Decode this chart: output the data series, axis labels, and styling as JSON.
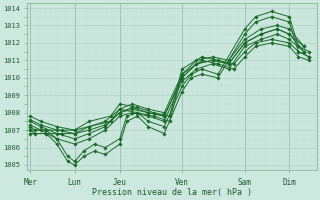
{
  "xlabel": "Pression niveau de la mer( hPa )",
  "background_color": "#cce8df",
  "grid_color_major": "#a8cfc4",
  "grid_color_minor": "#b8d9d0",
  "line_color": "#1a6b2a",
  "ylim": [
    1004.7,
    1014.3
  ],
  "xlim": [
    -0.05,
    5.35
  ],
  "yticks": [
    1005,
    1006,
    1007,
    1008,
    1009,
    1010,
    1011,
    1012,
    1013,
    1014
  ],
  "day_labels": [
    "Mer",
    "Lun",
    "Jeu",
    "Ven",
    "Sam",
    "Dim"
  ],
  "day_positions": [
    0.0,
    0.83,
    1.67,
    2.83,
    4.0,
    4.83
  ],
  "lines": [
    {
      "x": [
        0.0,
        0.1,
        0.3,
        0.5,
        0.7,
        0.83,
        1.0,
        1.2,
        1.4,
        1.67,
        1.8,
        2.0,
        2.2,
        2.5,
        2.83,
        3.0,
        3.2,
        3.5,
        4.0,
        4.2,
        4.5,
        4.83,
        5.0,
        5.2
      ],
      "y": [
        1007.2,
        1007.0,
        1007.0,
        1006.5,
        1005.5,
        1005.2,
        1005.8,
        1006.2,
        1006.0,
        1006.5,
        1007.8,
        1008.0,
        1007.5,
        1007.2,
        1009.5,
        1010.2,
        1010.5,
        1010.2,
        1012.8,
        1013.5,
        1013.8,
        1013.5,
        1011.8,
        1011.5
      ]
    },
    {
      "x": [
        0.0,
        0.1,
        0.3,
        0.5,
        0.7,
        0.83,
        1.0,
        1.2,
        1.4,
        1.67,
        1.8,
        2.0,
        2.2,
        2.5,
        2.83,
        3.0,
        3.2,
        3.5,
        4.0,
        4.2,
        4.5,
        4.83,
        5.0,
        5.2
      ],
      "y": [
        1007.0,
        1006.8,
        1006.8,
        1006.2,
        1005.2,
        1005.0,
        1005.5,
        1005.8,
        1005.6,
        1006.2,
        1007.5,
        1007.8,
        1007.2,
        1006.8,
        1009.2,
        1010.0,
        1010.2,
        1010.0,
        1012.5,
        1013.2,
        1013.5,
        1013.2,
        1011.5,
        1011.2
      ]
    },
    {
      "x": [
        0.0,
        0.2,
        0.5,
        0.83,
        1.1,
        1.4,
        1.67,
        1.9,
        2.2,
        2.5,
        2.83,
        3.1,
        3.4,
        3.7,
        4.0,
        4.3,
        4.6,
        4.83,
        5.1
      ],
      "y": [
        1007.5,
        1007.2,
        1006.8,
        1006.5,
        1006.8,
        1007.2,
        1008.0,
        1008.2,
        1008.0,
        1007.8,
        1010.0,
        1010.8,
        1011.0,
        1010.8,
        1012.0,
        1012.5,
        1012.8,
        1012.5,
        1011.8
      ]
    },
    {
      "x": [
        0.0,
        0.2,
        0.5,
        0.83,
        1.1,
        1.4,
        1.67,
        1.9,
        2.2,
        2.5,
        2.83,
        3.1,
        3.4,
        3.7,
        4.0,
        4.3,
        4.6,
        4.83,
        5.1
      ],
      "y": [
        1007.3,
        1007.0,
        1006.5,
        1006.2,
        1006.5,
        1007.0,
        1007.8,
        1008.0,
        1007.8,
        1007.5,
        1009.8,
        1010.5,
        1010.8,
        1010.5,
        1011.8,
        1012.2,
        1012.5,
        1012.2,
        1011.5
      ]
    },
    {
      "x": [
        0.0,
        0.2,
        0.5,
        0.83,
        1.1,
        1.4,
        1.67,
        1.9,
        2.2,
        2.5,
        2.83,
        3.1,
        3.4,
        3.7,
        4.0,
        4.3,
        4.6,
        4.83,
        5.1
      ],
      "y": [
        1007.8,
        1007.5,
        1007.2,
        1007.0,
        1007.2,
        1007.5,
        1008.2,
        1008.5,
        1008.2,
        1008.0,
        1010.2,
        1011.0,
        1011.2,
        1011.0,
        1012.2,
        1012.8,
        1013.0,
        1012.8,
        1011.8
      ]
    },
    {
      "x": [
        0.0,
        0.2,
        0.5,
        0.83,
        1.1,
        1.4,
        1.67,
        1.9,
        2.2,
        2.5,
        2.83,
        3.1,
        3.4,
        3.7,
        4.0,
        4.3,
        4.6,
        4.83,
        5.1
      ],
      "y": [
        1007.6,
        1007.3,
        1007.0,
        1006.8,
        1007.0,
        1007.3,
        1008.0,
        1008.3,
        1008.0,
        1007.8,
        1010.0,
        1010.8,
        1011.0,
        1010.8,
        1012.0,
        1012.5,
        1012.8,
        1012.5,
        1011.5
      ]
    },
    {
      "x": [
        0.0,
        0.3,
        0.6,
        0.83,
        1.1,
        1.5,
        1.67,
        2.0,
        2.3,
        2.6,
        2.83,
        3.2,
        3.5,
        3.8,
        4.0,
        4.2,
        4.5,
        4.83,
        5.0,
        5.2
      ],
      "y": [
        1007.0,
        1007.0,
        1007.0,
        1007.0,
        1007.5,
        1007.8,
        1008.5,
        1008.3,
        1008.0,
        1007.8,
        1010.5,
        1011.2,
        1011.0,
        1010.8,
        1011.5,
        1012.0,
        1012.2,
        1012.0,
        1011.5,
        1011.2
      ]
    },
    {
      "x": [
        0.0,
        0.3,
        0.6,
        0.83,
        1.1,
        1.5,
        1.67,
        2.0,
        2.3,
        2.6,
        2.83,
        3.2,
        3.5,
        3.8,
        4.0,
        4.2,
        4.5,
        4.83,
        5.0,
        5.2
      ],
      "y": [
        1006.8,
        1006.8,
        1006.8,
        1006.8,
        1007.2,
        1007.5,
        1008.2,
        1008.0,
        1007.8,
        1007.5,
        1010.2,
        1011.0,
        1010.8,
        1010.5,
        1011.2,
        1011.8,
        1012.0,
        1011.8,
        1011.2,
        1011.0
      ]
    }
  ]
}
